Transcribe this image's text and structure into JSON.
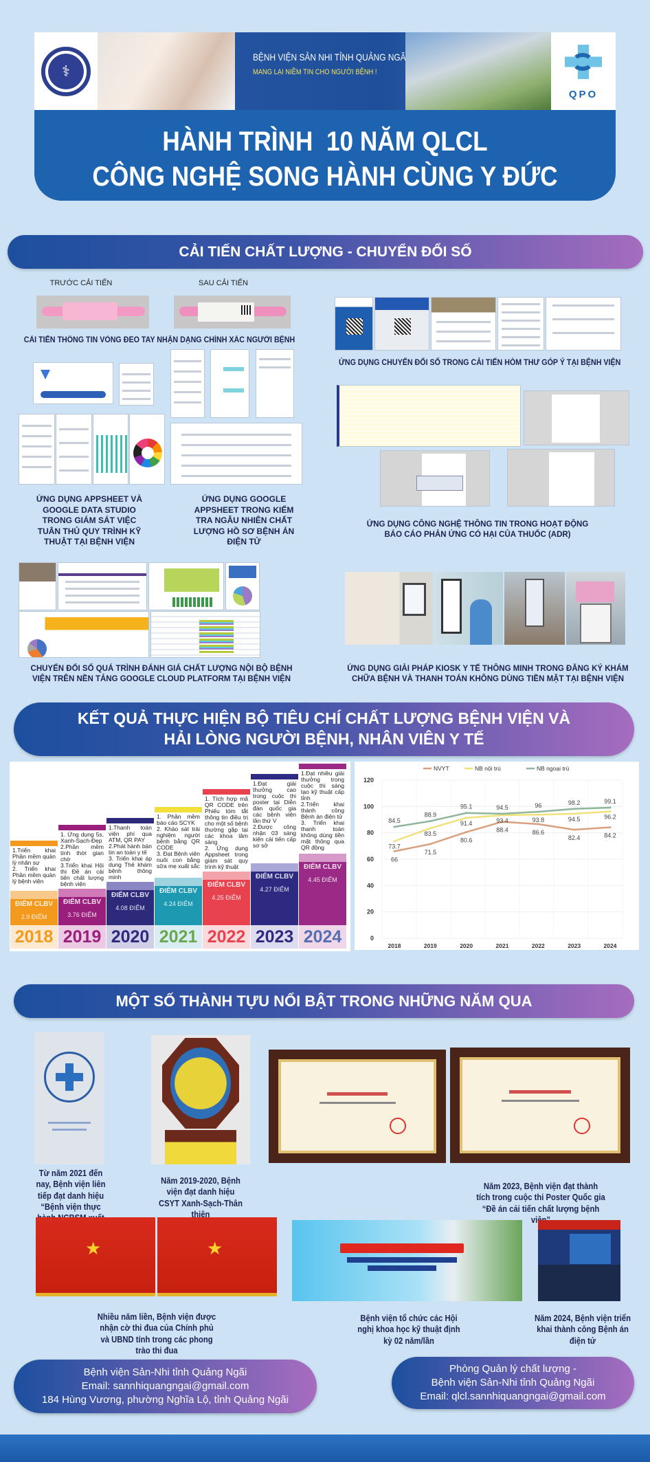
{
  "header": {
    "moh_logo": "BỘ Y TẾ · MINISTRY OF HEALTH",
    "hospital_name": "BỆNH VIỆN SẢN NHI TỈNH QUẢNG NGÃI",
    "slogan": "MANG LẠI NIỀM TIN CHO NGƯỜI BỆNH !",
    "qpo_logo": "QPO",
    "title_line1": "HÀNH TRÌNH  10 NĂM QLCL",
    "title_line2": "CÔNG NGHỆ SONG HÀNH CÙNG Y ĐỨC"
  },
  "section1": {
    "heading": "CẢI TIẾN CHẤT LƯỢNG - CHUYỂN ĐỔI SỐ",
    "before_label": "TRƯỚC CẢI TIẾN",
    "after_label": "SAU CẢI TIẾN",
    "wristband_caption": "CẢI TIẾN THÔNG TIN VÒNG ĐEO TAY NHẬN DẠNG CHÍNH XÁC NGƯỜI BỆNH",
    "feedback_caption": "ỨNG DỤNG CHUYỂN ĐỔI SỐ TRONG CẢI TIẾN HÒM THƯ GÓP Ý TẠI BỆNH VIỆN",
    "appsheet_caption": "ỨNG DỤNG APPSHEET VÀ GOOGLE DATA STUDIO TRONG GIÁM SÁT VIỆC TUÂN THỦ QUY TRÌNH KỸ THUẬT TẠI BỆNH VIỆN",
    "records_caption": "ỨNG DỤNG GOOGLE APPSHEET TRONG KIỂM TRA NGẪU NHIÊN CHẤT LƯỢNG HỒ SƠ BỆNH ÁN ĐIỆN TỬ",
    "adr_caption": "ỨNG DỤNG CÔNG NGHỆ THÔNG TIN TRONG HOẠT ĐỘNG BÁO CÁO PHẢN ỨNG CÓ HẠI CỦA THUỐC (ADR)",
    "gcp_caption": "CHUYỂN ĐỔI SỐ QUÁ TRÌNH ĐÁNH GIÁ CHẤT LƯỢNG NỘI BỘ BỆNH VIỆN TRÊN NỀN TẢNG GOOGLE CLOUD PLATFORM TẠI BỆNH VIỆN",
    "kiosk_caption": "ỨNG DỤNG GIẢI PHÁP KIOSK Y TẾ THÔNG MINH TRONG ĐĂNG KÝ KHÁM CHỮA BỆNH VÀ  THANH TOÁN KHÔNG DÙNG TIỀN MẶT TẠI BỆNH VIỆN"
  },
  "section2": {
    "heading_line1": "KẾT QUẢ THỰC HIỆN BỘ TIÊU CHÍ CHẤT LƯỢNG BỆNH VIỆN VÀ",
    "heading_line2": "HẢI LÒNG NGƯỜI BỆNH, NHÂN VIÊN Y TẾ",
    "score_label": "ĐIỂM CLBV",
    "timeline": [
      {
        "year": "2018",
        "score": "2.9 ĐIỂM",
        "color": "#f39a1e",
        "light": "#f8c98a",
        "text": "1.Triển khai Phần mềm quản lý nhân sự\n2. Triển khai Phần mềm quản lý bệnh viện"
      },
      {
        "year": "2019",
        "score": "3.76 ĐIỂM",
        "color": "#9a1f7d",
        "light": "#d07bb8",
        "text": "1. Ứng dụng 5s, Xanh-Sạch-Đẹp\n2.Phần mềm tính thời gian chờ\n3.Triển khai Hội thi Đề án cải tiến chất lượng bệnh viện"
      },
      {
        "year": "2020",
        "score": "4.08 ĐIỂM",
        "color": "#2d2a7c",
        "light": "#8b86c4",
        "text": "1.Thanh toán viện phí qua ATM, QR PAY\n2.Phát hành bản tin an toàn y tế\n3. Triển khai áp dụng Thẻ khám bệnh thông minh"
      },
      {
        "year": "2021",
        "score": "4.24 ĐIỂM",
        "color": "#1d9ab2",
        "light": "#9fd3df",
        "yearColor": "#6aa84f",
        "barColor": "#f2df3a",
        "text": "1. Phần mềm báo cáo SCYK\n2. Khảo sát trải nghiệm người bệnh bằng QR CODE\n3. Đạt Bệnh viện nuôi con bằng sữa mẹ xuất sắc"
      },
      {
        "year": "2022",
        "score": "4.25 ĐIỂM",
        "color": "#e8424f",
        "light": "#f4a3ab",
        "text": "1. Tích hợp mã QR CODE trên Phiếu tóm tắt thông tin điều trị cho một số bệnh thường gặp tại các khoa lâm sàng\n2. Ứng dụng Appsheet trong giám sát quy trình kỹ thuật"
      },
      {
        "year": "2023",
        "score": "4.27 ĐIỂM",
        "color": "#2e2a82",
        "light": "#a9a6d8",
        "text": "1.Đạt giải thưởng cao trong cuộc thi poster tại Diễn đàn quốc gia các bệnh viện lần thứ V\n2.Được công nhận 03 sáng kiến cải tiến cấp sơ sở"
      },
      {
        "year": "2024",
        "score": "4.45 ĐIỂM",
        "color": "#9b2a86",
        "light": "#d69bc8",
        "yearColor": "#5570b0",
        "text": "1.Đạt nhiều giải thưởng trong cuộc thi sáng tạo kỹ thuật cấp tỉnh\n2.Triển khai thành công Bệnh án điện tử\n3. Triển khai thanh toán không dùng tiền mặt thông qua QR động"
      }
    ]
  },
  "chart_data": {
    "type": "line",
    "categories": [
      "2018",
      "2019",
      "2020",
      "2021",
      "2022",
      "2023",
      "2024"
    ],
    "ylim": [
      0,
      120
    ],
    "yticks": [
      "0",
      "20",
      "40",
      "60",
      "80",
      "100",
      "120"
    ],
    "grid": true,
    "legend_position": "top",
    "series": [
      {
        "name": "NVYT",
        "color": "#d9a07e",
        "values": [
          66,
          71.5,
          80.6,
          88.4,
          86.6,
          82.4,
          84.2
        ],
        "labels": [
          "66",
          "71.5",
          "80.6",
          "88.4",
          "86.6",
          "82.4",
          "84.2"
        ]
      },
      {
        "name": "NB nội trú",
        "color": "#f0e27a",
        "values": [
          73.7,
          83.5,
          91.4,
          93.4,
          93.8,
          94.5,
          96.2
        ],
        "labels": [
          "73.7",
          "83.5",
          "91.4",
          "93.4",
          "93.8",
          "94.5",
          "96.2"
        ]
      },
      {
        "name": "NB ngoại trú",
        "color": "#8fb59a",
        "values": [
          84.5,
          88.9,
          95.1,
          94.5,
          96,
          98.2,
          99.1
        ],
        "labels": [
          "84.5",
          "88.9",
          "95.1",
          "94.5",
          "96",
          "98.2",
          "99.1"
        ]
      }
    ]
  },
  "section3": {
    "heading": "MỘT SỐ THÀNH TỰU NỔI BẬT TRONG NHỮNG NĂM QUA",
    "achievements": [
      {
        "caption": "Từ năm 2021 đến nay, Bệnh viện liên tiếp đạt danh hiệu “Bệnh viện thực hành NCBSM xuất sắc”"
      },
      {
        "caption": "Năm 2019-2020, Bệnh viện đạt danh hiệu CSYT Xanh-Sạch-Thân thiện"
      },
      {
        "caption": "Năm 2023, Bệnh viện đạt thành tích trong cuộc thi Poster Quốc gia “Đề án cải tiến chất lượng bệnh viện”"
      },
      {
        "caption": "Nhiều năm liền, Bệnh viện được nhận cờ thi đua của Chính phủ và UBND tỉnh trong các phong trào thi đua"
      },
      {
        "caption": "Bệnh viện tổ chức các Hội nghị khoa học kỹ thuật định kỳ 02 năm/lần"
      },
      {
        "caption": "Năm 2024, Bệnh viện triển khai thành công Bệnh án điện tử"
      }
    ]
  },
  "contacts": {
    "left": {
      "line1": "Bệnh viện Sản-Nhi tỉnh Quảng Ngãi",
      "line2": "Email: sannhiquangngai@gmail.com",
      "line3": "184 Hùng Vương, phường Nghĩa Lộ, tỉnh Quảng Ngãi"
    },
    "right": {
      "line1": "Phòng Quản lý chất lượng -",
      "line2": "Bệnh viện Sản-Nhi tỉnh Quảng Ngãi",
      "line3": "Email: qlcl.sannhiquangngai@gmail.com"
    }
  }
}
